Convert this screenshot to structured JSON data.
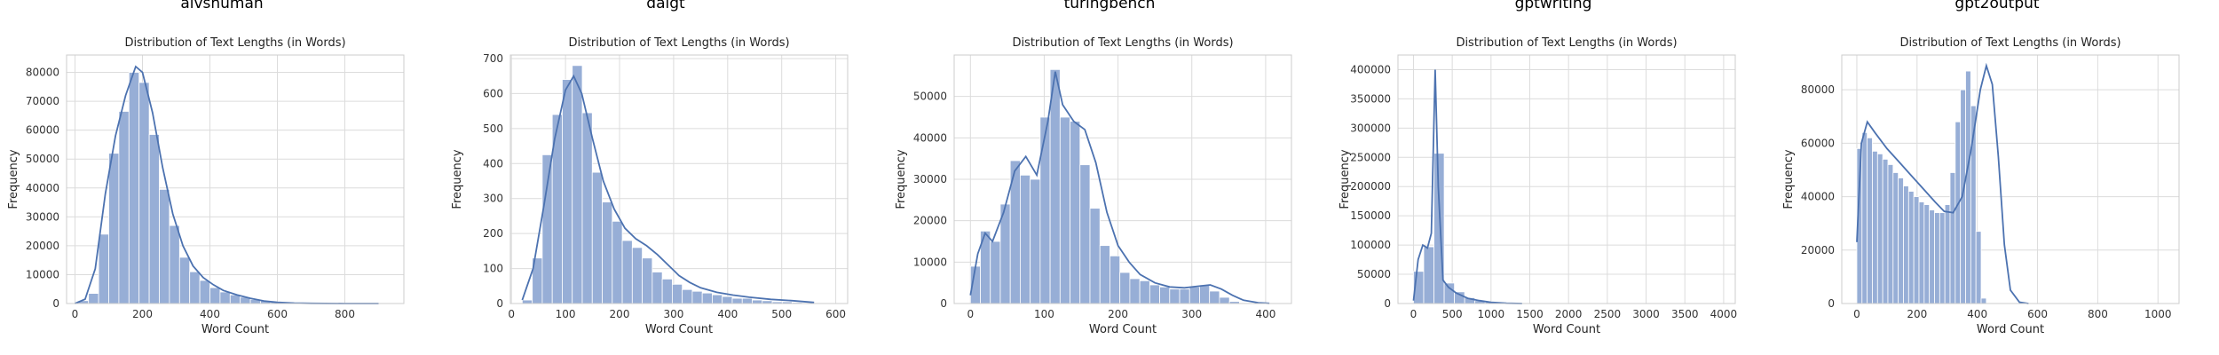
{
  "chart_data": [
    {
      "type": "bar",
      "suptitle": "aivshuman",
      "title": "Distribution of Text Lengths (in Words)",
      "xlabel": "Word Count",
      "ylabel": "Frequency",
      "xlim": [
        -25,
        975
      ],
      "ylim": [
        0,
        86000
      ],
      "xticks": [
        0,
        200,
        400,
        600,
        800
      ],
      "yticks": [
        0,
        10000,
        20000,
        30000,
        40000,
        50000,
        60000,
        70000,
        80000
      ],
      "grid": true,
      "bin_width": 30,
      "bin_start": 10,
      "values": [
        1000,
        3500,
        24000,
        52000,
        66500,
        80000,
        76500,
        58500,
        39500,
        27000,
        16000,
        11000,
        8000,
        5500,
        4000,
        3000,
        2200,
        1400,
        900,
        500,
        300,
        150,
        80,
        40,
        20,
        10,
        0,
        0,
        0,
        0
      ],
      "kde": [
        [
          0,
          0
        ],
        [
          30,
          1500
        ],
        [
          60,
          12000
        ],
        [
          90,
          38000
        ],
        [
          120,
          58000
        ],
        [
          150,
          72000
        ],
        [
          180,
          82000
        ],
        [
          200,
          80000
        ],
        [
          230,
          66000
        ],
        [
          260,
          47000
        ],
        [
          290,
          31000
        ],
        [
          320,
          20000
        ],
        [
          350,
          13000
        ],
        [
          380,
          9000
        ],
        [
          410,
          6500
        ],
        [
          440,
          4500
        ],
        [
          480,
          3000
        ],
        [
          520,
          1800
        ],
        [
          560,
          900
        ],
        [
          600,
          400
        ],
        [
          650,
          150
        ],
        [
          700,
          50
        ],
        [
          800,
          0
        ],
        [
          900,
          0
        ]
      ]
    },
    {
      "type": "bar",
      "suptitle": "daigt",
      "title": "Distribution of Text Lengths (in Words)",
      "xlabel": "Word Count",
      "ylabel": "Frequency",
      "xlim": [
        -2,
        622
      ],
      "ylim": [
        0,
        710
      ],
      "xticks": [
        0,
        100,
        200,
        300,
        400,
        500,
        600
      ],
      "yticks": [
        0,
        100,
        200,
        300,
        400,
        500,
        600,
        700
      ],
      "grid": true,
      "bin_width": 18.5,
      "bin_start": 20,
      "values": [
        10,
        130,
        425,
        540,
        640,
        680,
        545,
        375,
        290,
        235,
        180,
        160,
        130,
        90,
        70,
        55,
        40,
        35,
        30,
        25,
        20,
        15,
        15,
        10,
        8,
        5,
        5,
        3,
        0,
        0
      ],
      "kde": [
        [
          20,
          10
        ],
        [
          40,
          100
        ],
        [
          60,
          280
        ],
        [
          80,
          470
        ],
        [
          100,
          610
        ],
        [
          115,
          650
        ],
        [
          130,
          600
        ],
        [
          150,
          470
        ],
        [
          170,
          350
        ],
        [
          190,
          270
        ],
        [
          210,
          215
        ],
        [
          230,
          185
        ],
        [
          250,
          165
        ],
        [
          270,
          140
        ],
        [
          290,
          110
        ],
        [
          310,
          80
        ],
        [
          330,
          60
        ],
        [
          350,
          45
        ],
        [
          380,
          32
        ],
        [
          410,
          24
        ],
        [
          440,
          18
        ],
        [
          480,
          12
        ],
        [
          520,
          8
        ],
        [
          560,
          3
        ]
      ]
    },
    {
      "type": "bar",
      "suptitle": "turingbench",
      "title": "Distribution of Text Lengths (in Words)",
      "xlabel": "Word Count",
      "ylabel": "Frequency",
      "xlim": [
        -22,
        435
      ],
      "ylim": [
        0,
        60000
      ],
      "xticks": [
        0,
        100,
        200,
        300,
        400
      ],
      "yticks": [
        0,
        10000,
        20000,
        30000,
        40000,
        50000
      ],
      "grid": true,
      "bin_width": 13.5,
      "bin_start": 0,
      "values": [
        9000,
        17500,
        15000,
        24000,
        34500,
        31000,
        30000,
        45000,
        56500,
        45000,
        44000,
        33500,
        23000,
        14000,
        11500,
        7500,
        6000,
        5500,
        4500,
        4000,
        3500,
        3500,
        4000,
        4500,
        3000,
        1500,
        500,
        100,
        0,
        0
      ],
      "kde": [
        [
          0,
          2000
        ],
        [
          10,
          12000
        ],
        [
          20,
          17000
        ],
        [
          30,
          15000
        ],
        [
          45,
          22000
        ],
        [
          60,
          32000
        ],
        [
          75,
          35500
        ],
        [
          90,
          31000
        ],
        [
          105,
          44000
        ],
        [
          115,
          56000
        ],
        [
          125,
          48000
        ],
        [
          140,
          44000
        ],
        [
          155,
          42000
        ],
        [
          170,
          34000
        ],
        [
          185,
          22000
        ],
        [
          200,
          14000
        ],
        [
          215,
          10000
        ],
        [
          230,
          7000
        ],
        [
          250,
          5000
        ],
        [
          270,
          4000
        ],
        [
          290,
          3800
        ],
        [
          310,
          4200
        ],
        [
          325,
          4500
        ],
        [
          340,
          3500
        ],
        [
          355,
          2000
        ],
        [
          370,
          800
        ],
        [
          390,
          200
        ],
        [
          405,
          50
        ]
      ]
    },
    {
      "type": "bar",
      "suptitle": "gptwriting",
      "title": "Distribution of Text Lengths (in Words)",
      "xlabel": "Word Count",
      "ylabel": "Frequency",
      "xlim": [
        -200,
        4150
      ],
      "ylim": [
        0,
        425000
      ],
      "xticks": [
        0,
        500,
        1000,
        1500,
        2000,
        2500,
        3000,
        3500,
        4000
      ],
      "yticks": [
        0,
        50000,
        100000,
        150000,
        200000,
        250000,
        300000,
        350000,
        400000
      ],
      "grid": true,
      "bin_width": 132,
      "bin_start": 0,
      "values": [
        55000,
        97000,
        257000,
        35000,
        20000,
        10000,
        5000,
        2500,
        1200,
        600,
        300,
        100,
        0,
        0,
        0,
        0,
        0,
        0,
        0,
        0,
        0,
        0,
        0,
        0,
        0,
        0,
        0,
        0,
        0,
        0
      ],
      "kde": [
        [
          0,
          5000
        ],
        [
          60,
          75000
        ],
        [
          120,
          100000
        ],
        [
          180,
          95000
        ],
        [
          230,
          120000
        ],
        [
          280,
          400000
        ],
        [
          320,
          200000
        ],
        [
          380,
          40000
        ],
        [
          450,
          28000
        ],
        [
          550,
          18000
        ],
        [
          700,
          9000
        ],
        [
          850,
          5000
        ],
        [
          1000,
          2000
        ],
        [
          1200,
          500
        ],
        [
          1400,
          0
        ]
      ]
    },
    {
      "type": "bar",
      "suptitle": "gpt2output",
      "title": "Distribution of Text Lengths (in Words)",
      "xlabel": "Word Count",
      "ylabel": "Frequency",
      "xlim": [
        -50,
        1070
      ],
      "ylim": [
        0,
        93000
      ],
      "xticks": [
        0,
        200,
        400,
        600,
        800,
        1000
      ],
      "yticks": [
        0,
        20000,
        40000,
        60000,
        80000
      ],
      "grid": true,
      "bin_width": 17.2,
      "bin_start": 0,
      "values": [
        58000,
        64000,
        62000,
        57000,
        56000,
        54000,
        52000,
        49000,
        47000,
        44000,
        42000,
        40000,
        38000,
        37000,
        35000,
        34000,
        34000,
        37000,
        49000,
        68000,
        80000,
        87000,
        74000,
        27000,
        2000,
        0,
        0,
        0,
        0,
        0
      ],
      "kde": [
        [
          0,
          23000
        ],
        [
          15,
          60000
        ],
        [
          35,
          68000
        ],
        [
          60,
          64000
        ],
        [
          100,
          58000
        ],
        [
          140,
          53000
        ],
        [
          180,
          48000
        ],
        [
          220,
          43000
        ],
        [
          260,
          38000
        ],
        [
          290,
          34500
        ],
        [
          320,
          34000
        ],
        [
          350,
          40000
        ],
        [
          380,
          58000
        ],
        [
          410,
          80000
        ],
        [
          430,
          89000
        ],
        [
          450,
          82000
        ],
        [
          470,
          55000
        ],
        [
          490,
          22000
        ],
        [
          510,
          5000
        ],
        [
          540,
          500
        ],
        [
          570,
          0
        ]
      ]
    }
  ]
}
